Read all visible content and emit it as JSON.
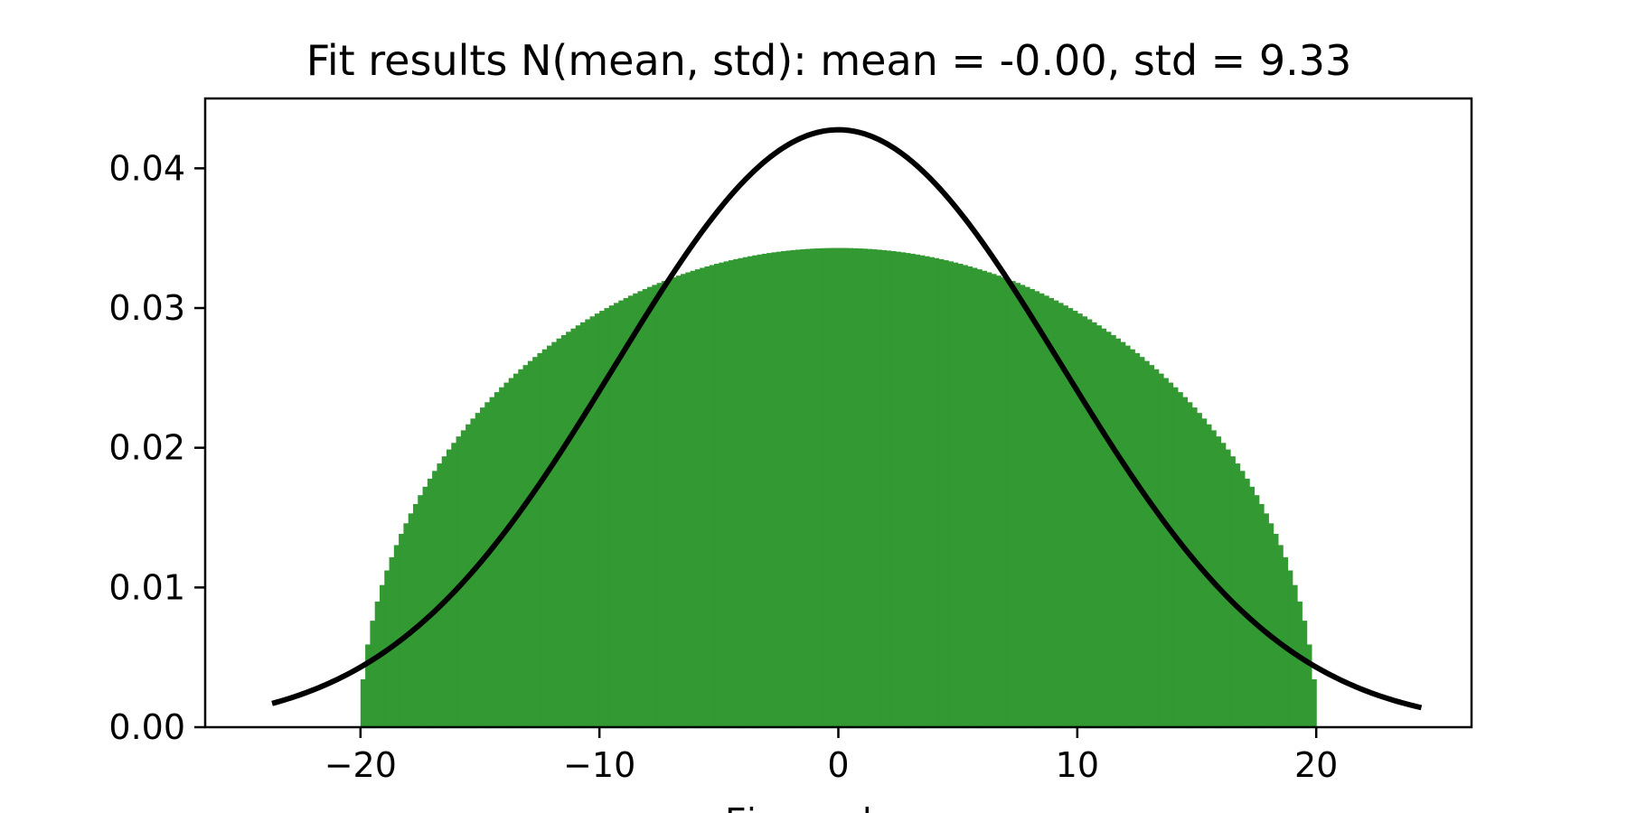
{
  "chart_data": {
    "type": "bar",
    "title": "Fit results N(mean, std): mean = -0.00,  std = 9.33",
    "xlabel": "Eigenvalues",
    "ylabel": "",
    "xlim": [
      -26.5,
      26.5
    ],
    "ylim": [
      0.0,
      0.045
    ],
    "x_ticks": [
      -20,
      -10,
      0,
      10,
      20
    ],
    "x_tick_labels": [
      "−20",
      "−10",
      "0",
      "10",
      "20"
    ],
    "y_ticks": [
      0.0,
      0.01,
      0.02,
      0.03,
      0.04
    ],
    "y_tick_labels": [
      "0.00",
      "0.01",
      "0.02",
      "0.03",
      "0.04"
    ],
    "grid": false,
    "series": [
      {
        "kind": "histogram",
        "color": "#339933",
        "bin_range": [
          -20.0,
          20.0
        ],
        "bin_count": 200,
        "profile": "semicircle",
        "peak_density": 0.0343
      },
      {
        "kind": "normal_pdf",
        "color": "#000000",
        "mean": 0.0,
        "std": 9.33,
        "x_range": [
          -23.7,
          24.4
        ]
      }
    ]
  }
}
